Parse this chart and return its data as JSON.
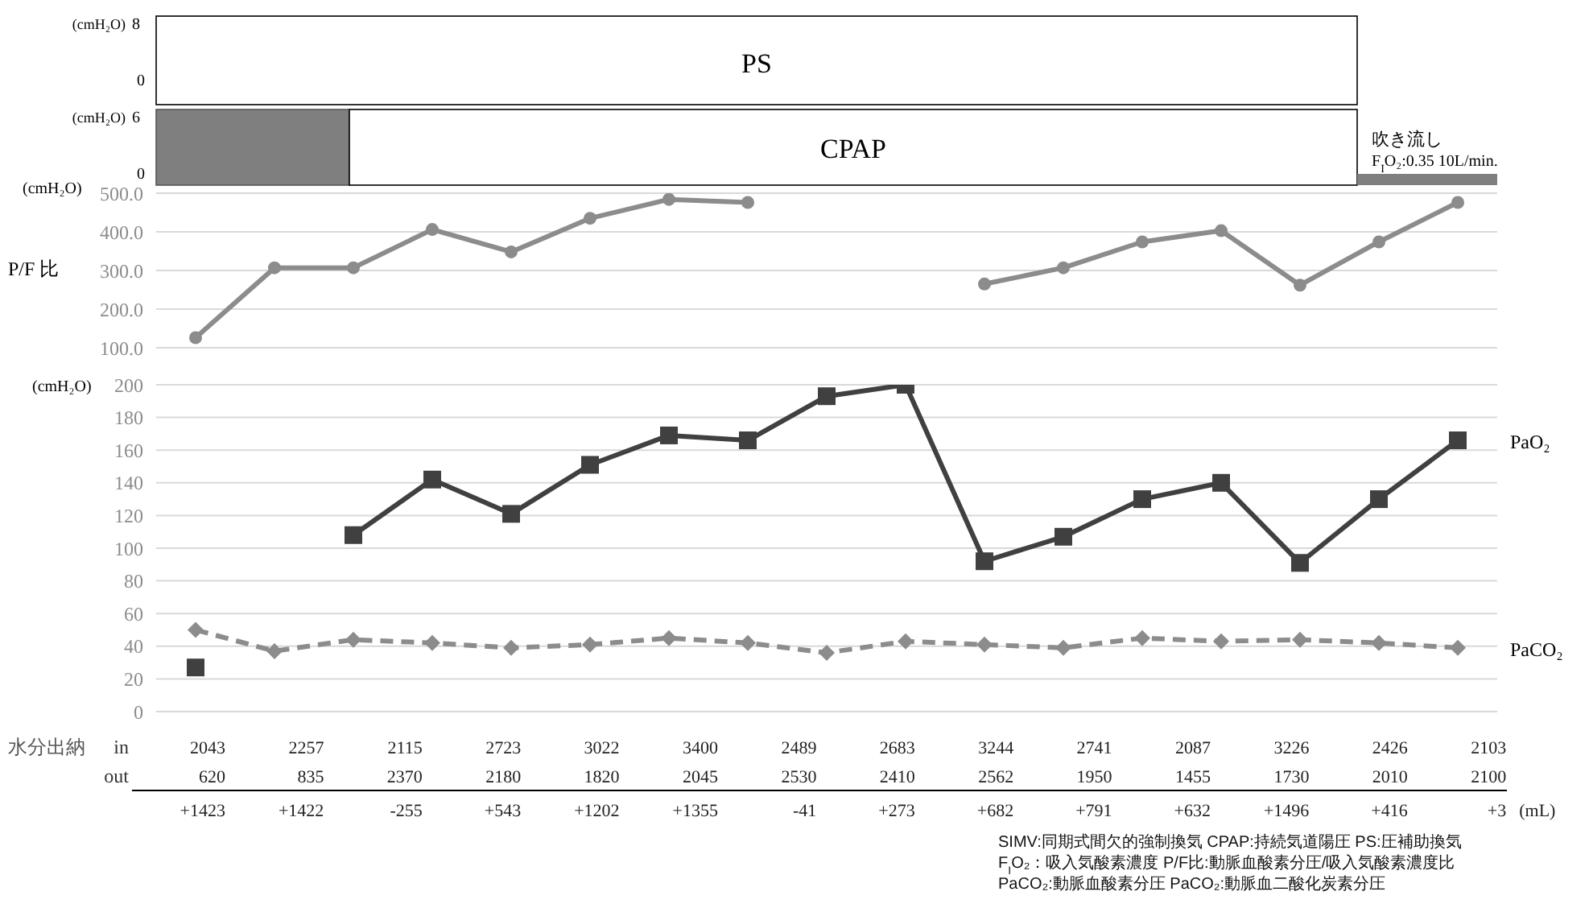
{
  "chart_data": [
    {
      "type": "other",
      "annotations": [
        "(cmH₂O)",
        "8",
        "0",
        "PS"
      ]
    },
    {
      "type": "other",
      "annotations": [
        "(cmH₂O)",
        "6",
        "0",
        "CPAP",
        "吹き流し",
        "F$_{I}$O₂:0.35  10L/min."
      ]
    },
    {
      "type": "line",
      "ylabel": "P/F 比",
      "annotations": [
        "(cmH₂O)"
      ],
      "categories": [
        null,
        null,
        null,
        null,
        null,
        null,
        null,
        null,
        null,
        null,
        null,
        null,
        null,
        null,
        null,
        null,
        null
      ],
      "ylim": [
        100,
        500
      ],
      "yticks": [
        {
          "value": 100,
          "label": "100.0"
        },
        {
          "value": 200,
          "label": "200.0"
        },
        {
          "value": 300,
          "label": "300.0"
        },
        {
          "value": 400,
          "label": "400.0"
        },
        {
          "value": 500,
          "label": "500.0"
        }
      ],
      "tick_labels": "y",
      "grid": "y",
      "marker": "circle",
      "line_style": "solid",
      "series": [
        {
          "color": "#8c8c8c",
          "values": [
            126,
            307,
            307,
            406,
            348,
            435,
            484,
            476,
            null,
            null,
            265,
            307,
            374,
            403,
            262,
            374,
            476
          ]
        }
      ]
    },
    {
      "type": "line",
      "ylabel": "(cmH₂O)",
      "categories": [
        null,
        null,
        null,
        null,
        null,
        null,
        null,
        null,
        null,
        null,
        null,
        null,
        null,
        null,
        null,
        null,
        null
      ],
      "ylim": [
        0,
        200
      ],
      "yticks": [
        0,
        20,
        40,
        60,
        80,
        100,
        120,
        140,
        160,
        180,
        200
      ],
      "tick_labels": "y",
      "grid": "y",
      "series": [
        {
          "name": "PaO₂",
          "color": "#404040",
          "marker": "square",
          "line_style": "solid",
          "values": [
            27,
            null,
            108,
            142,
            121,
            151,
            169,
            166,
            193,
            200,
            92,
            107,
            130,
            140,
            91,
            130,
            166
          ]
        },
        {
          "name": "PaCO₂",
          "color": "#8c8c8c",
          "marker": "diamond",
          "line_style": "dashed",
          "values": [
            50,
            37,
            44,
            42,
            39,
            41,
            45,
            42,
            36,
            43,
            41,
            39,
            45,
            43,
            44,
            42,
            39
          ]
        }
      ]
    },
    {
      "type": "other",
      "annotations": [
        "水分出納",
        "in",
        "2043",
        "2257",
        "2115",
        "2723",
        "3022",
        "3400",
        "2489",
        "2683",
        "3244",
        "2741",
        "2087",
        "3226",
        "2426",
        "2103",
        "out",
        "620",
        "835",
        "2370",
        "2180",
        "1820",
        "2045",
        "2530",
        "2410",
        "2562",
        "1950",
        "1455",
        "1730",
        "2010",
        "2100",
        "+1423",
        "+1422",
        "-255",
        "+543",
        "+1202",
        "+1355",
        "-41",
        "+273",
        "+682",
        "+791",
        "+632",
        "+1496",
        "+416",
        "+3",
        "(mL)",
        "SIMV:同期式間欠的強制換気  CPAP:持続気道陽圧  PS:圧補助換気",
        "F$_{I}$O₂：吸入気酸素濃度   P/F比:動脈血酸素分圧/吸入気酸素濃度比",
        "PaCO₂:動脈血酸素分圧  PaCO₂:動脈血二酸化炭素分圧"
      ]
    }
  ]
}
